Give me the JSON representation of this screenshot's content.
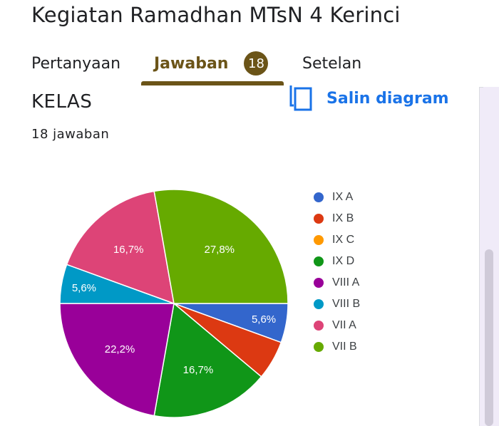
{
  "form": {
    "title": "Kegiatan Ramadhan MTsN 4 Kerinci"
  },
  "tabs": {
    "questions_label": "Pertanyaan",
    "responses_label": "Jawaban",
    "responses_count": "18",
    "settings_label": "Setelan",
    "active": "Jawaban"
  },
  "question": {
    "title": "KELAS",
    "response_count": "18 jawaban",
    "copy_chart_label": "Salin diagram",
    "copy_icon": "copy-icon"
  },
  "colors": {
    "accent": "#6b5418",
    "link": "#1a73e8",
    "page_background": "#f0ebf8"
  },
  "chart_data": {
    "type": "pie",
    "title": "",
    "total_responses": 18,
    "slices": [
      {
        "label": "IX A",
        "value": 1,
        "percent_label": "5,6%",
        "color": "#3366cc"
      },
      {
        "label": "IX B",
        "value": 1,
        "percent_label": "",
        "color": "#dc3912"
      },
      {
        "label": "IX C",
        "value": 0,
        "percent_label": "",
        "color": "#ff9900"
      },
      {
        "label": "IX D",
        "value": 3,
        "percent_label": "16,7%",
        "color": "#109618"
      },
      {
        "label": "VIII A",
        "value": 4,
        "percent_label": "22,2%",
        "color": "#990099"
      },
      {
        "label": "VIII B",
        "value": 1,
        "percent_label": "5,6%",
        "color": "#0099c6"
      },
      {
        "label": "VII A",
        "value": 3,
        "percent_label": "16,7%",
        "color": "#dd4477"
      },
      {
        "label": "VII B",
        "value": 5,
        "percent_label": "27,8%",
        "color": "#66aa00"
      }
    ],
    "legend_position": "right"
  }
}
